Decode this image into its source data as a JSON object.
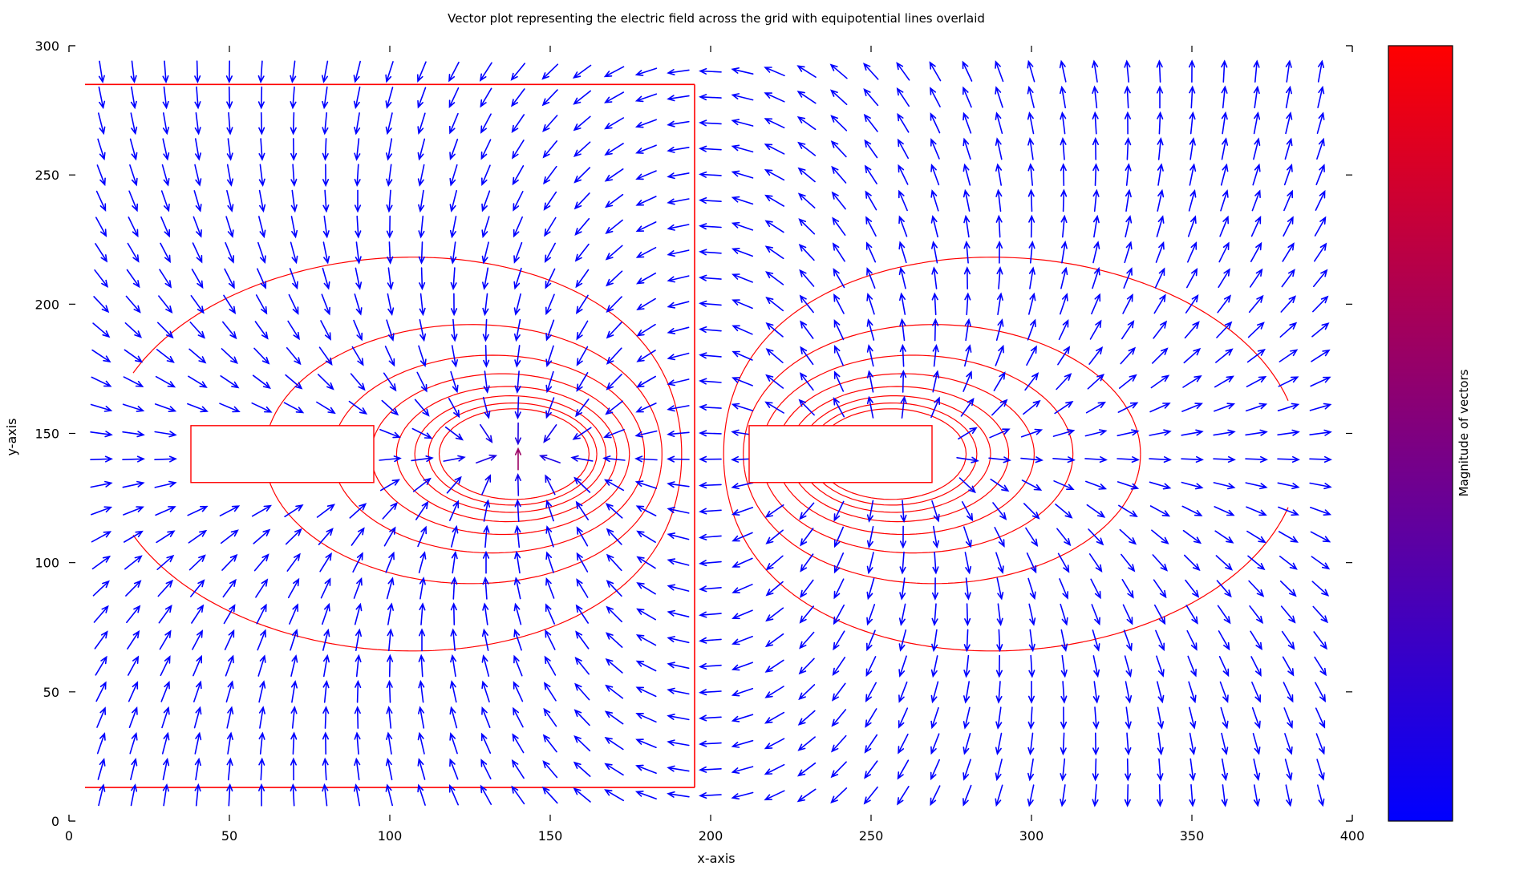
{
  "chart_data": {
    "type": "vector_field_with_contours",
    "title": "Vector plot representing the electric field across the grid with equipotential lines overlaid",
    "xlabel": "x-axis",
    "ylabel": "y-axis",
    "xlim": [
      0,
      400
    ],
    "ylim": [
      0,
      300
    ],
    "xticks": [
      0,
      50,
      100,
      150,
      200,
      250,
      300,
      350,
      400
    ],
    "yticks": [
      0,
      50,
      100,
      150,
      200,
      250,
      300
    ],
    "grid": false,
    "colorbar": {
      "label": "Magnitude of vectors",
      "colors": [
        "#0000ff",
        "#ff0000"
      ],
      "ticks": []
    },
    "vector_color": "#0000ff",
    "contour_color": "#ff0000",
    "grid_spacing": 10,
    "x_range": [
      10,
      390
    ],
    "y_range": [
      10,
      290
    ],
    "plates": [
      {
        "x": [
          38,
          95
        ],
        "y": [
          131,
          153
        ]
      },
      {
        "x": [
          212,
          269
        ],
        "y": [
          131,
          153
        ]
      }
    ],
    "conductor_boundaries": [
      {
        "points": [
          [
            5,
            285
          ],
          [
            195,
            285
          ]
        ]
      },
      {
        "points": [
          [
            5,
            13
          ],
          [
            195,
            13
          ]
        ]
      },
      {
        "points": [
          [
            195,
            13
          ],
          [
            195,
            285
          ]
        ]
      }
    ],
    "field_sources": [
      {
        "x": 140,
        "y": 142,
        "sign": -1
      },
      {
        "x": 255,
        "y": 142,
        "sign": 1
      }
    ],
    "equipotential_levels": [
      1,
      2,
      3,
      4,
      5,
      6,
      7,
      8
    ]
  }
}
